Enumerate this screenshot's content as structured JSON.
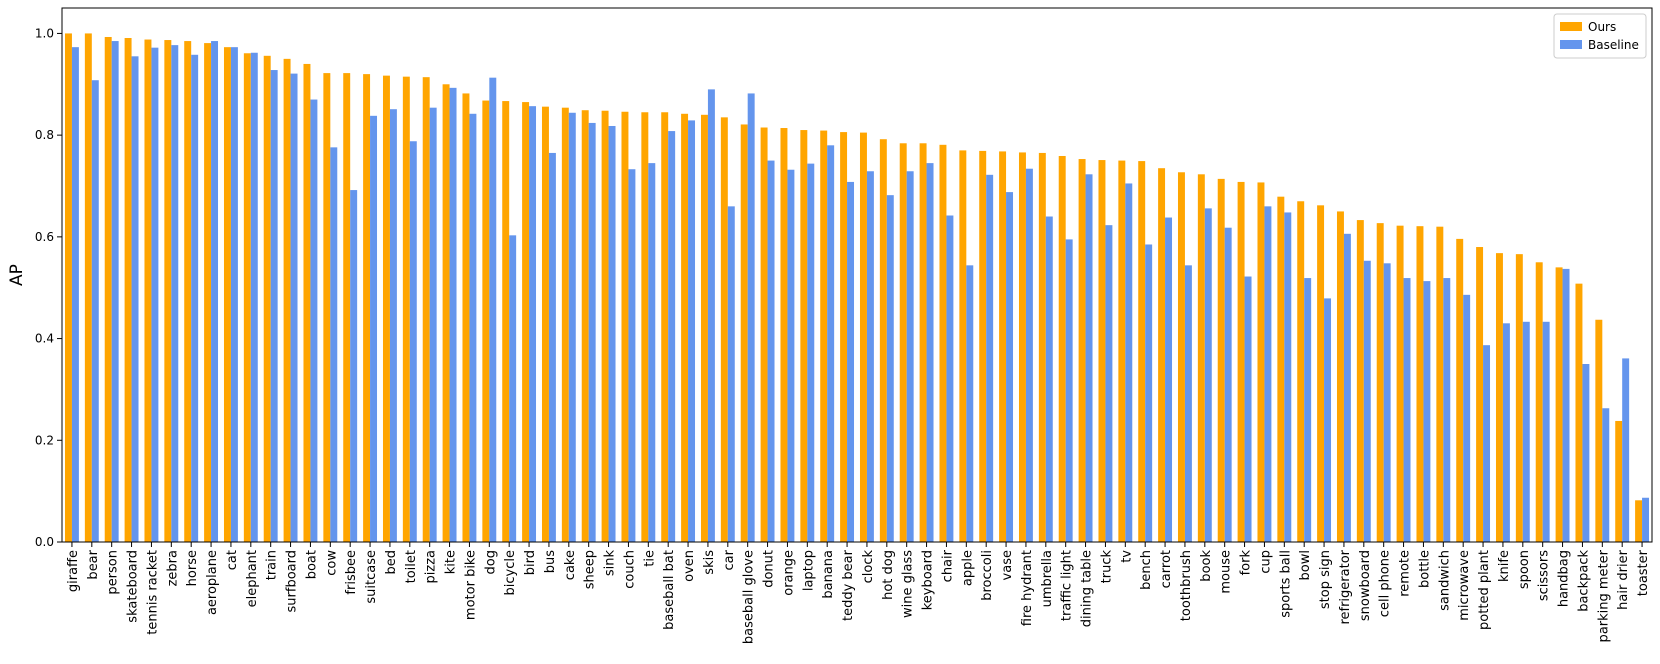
{
  "chart_data": {
    "type": "bar",
    "y_label": "AP",
    "categories": [
      "giraffe",
      "bear",
      "person",
      "skateboard",
      "tennis racket",
      "zebra",
      "horse",
      "aeroplane",
      "cat",
      "elephant",
      "train",
      "surfboard",
      "boat",
      "cow",
      "frisbee",
      "suitcase",
      "bed",
      "toilet",
      "pizza",
      "kite",
      "motor bike",
      "dog",
      "bicycle",
      "bird",
      "bus",
      "cake",
      "sheep",
      "sink",
      "couch",
      "tie",
      "baseball bat",
      "oven",
      "skis",
      "car",
      "baseball glove",
      "donut",
      "orange",
      "laptop",
      "banana",
      "teddy bear",
      "clock",
      "hot dog",
      "wine glass",
      "keyboard",
      "chair",
      "apple",
      "broccoli",
      "vase",
      "fire hydrant",
      "umbrella",
      "traffic light",
      "dining table",
      "truck",
      "tv",
      "bench",
      "carrot",
      "toothbrush",
      "book",
      "mouse",
      "fork",
      "cup",
      "sports ball",
      "bowl",
      "stop sign",
      "refrigerator",
      "snowboard",
      "cell phone",
      "remote",
      "bottle",
      "sandwich",
      "microwave",
      "potted plant",
      "knife",
      "spoon",
      "scissors",
      "handbag",
      "backpack",
      "parking meter",
      "hair drier",
      "toaster"
    ],
    "series": [
      {
        "name": "Ours",
        "color": "#ffa500",
        "values": [
          1.0,
          1.0,
          0.993,
          0.991,
          0.988,
          0.987,
          0.985,
          0.981,
          0.973,
          0.961,
          0.956,
          0.95,
          0.94,
          0.922,
          0.922,
          0.92,
          0.917,
          0.915,
          0.914,
          0.9,
          0.882,
          0.868,
          0.867,
          0.865,
          0.856,
          0.854,
          0.849,
          0.848,
          0.846,
          0.845,
          0.845,
          0.842,
          0.84,
          0.835,
          0.821,
          0.815,
          0.814,
          0.81,
          0.809,
          0.806,
          0.805,
          0.792,
          0.784,
          0.784,
          0.781,
          0.77,
          0.769,
          0.768,
          0.766,
          0.765,
          0.759,
          0.753,
          0.751,
          0.75,
          0.749,
          0.735,
          0.727,
          0.723,
          0.714,
          0.708,
          0.707,
          0.679,
          0.67,
          0.662,
          0.65,
          0.633,
          0.627,
          0.622,
          0.621,
          0.62,
          0.596,
          0.58,
          0.568,
          0.566,
          0.55,
          0.54,
          0.508,
          0.437,
          0.238,
          0.082
        ]
      },
      {
        "name": "Baseline",
        "color": "#6495ed",
        "values": [
          0.973,
          0.908,
          0.985,
          0.955,
          0.972,
          0.977,
          0.958,
          0.985,
          0.973,
          0.962,
          0.928,
          0.921,
          0.87,
          0.776,
          0.692,
          0.838,
          0.851,
          0.788,
          0.854,
          0.893,
          0.842,
          0.913,
          0.603,
          0.857,
          0.765,
          0.844,
          0.824,
          0.818,
          0.733,
          0.745,
          0.808,
          0.829,
          0.89,
          0.66,
          0.882,
          0.75,
          0.732,
          0.744,
          0.78,
          0.708,
          0.729,
          0.682,
          0.729,
          0.745,
          0.642,
          0.544,
          0.722,
          0.688,
          0.734,
          0.64,
          0.595,
          0.723,
          0.623,
          0.705,
          0.585,
          0.638,
          0.544,
          0.656,
          0.618,
          0.522,
          0.66,
          0.648,
          0.519,
          0.479,
          0.606,
          0.553,
          0.548,
          0.519,
          0.513,
          0.519,
          0.486,
          0.387,
          0.43,
          0.433,
          0.433,
          0.537,
          0.35,
          0.263,
          0.361,
          0.087
        ]
      }
    ],
    "ylim": [
      0,
      1.05
    ],
    "yticks": [
      {
        "value": 0,
        "label": "0.0"
      },
      0.2,
      0.4,
      0.6,
      0.8,
      {
        "value": 1,
        "label": "1.0"
      }
    ],
    "legend": "upper right"
  }
}
